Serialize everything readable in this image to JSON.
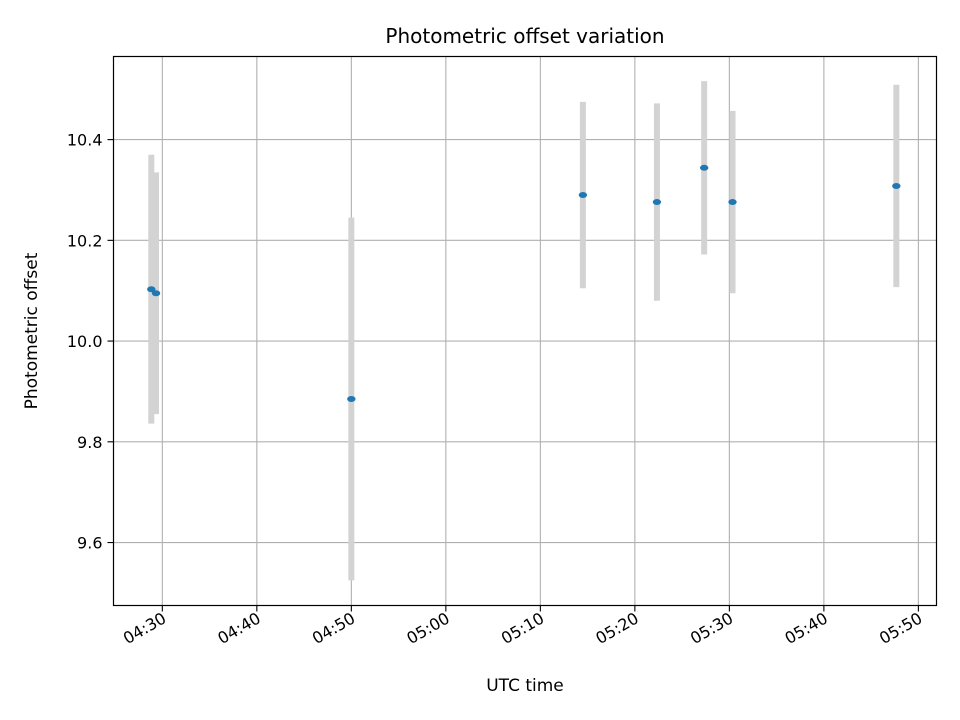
{
  "chart_data": {
    "type": "scatter",
    "title": "Photometric offset variation",
    "xlabel": "UTC time",
    "ylabel": "Photometric offset",
    "x_ticks": [
      "04:30",
      "04:40",
      "04:50",
      "05:00",
      "05:10",
      "05:20",
      "05:30",
      "05:40",
      "05:50"
    ],
    "y_ticks": [
      "9.6",
      "9.8",
      "10.0",
      "10.2",
      "10.4"
    ],
    "xlim": [
      "04:24:50",
      "05:51:55"
    ],
    "ylim": [
      9.475,
      10.565
    ],
    "grid": true,
    "colors": {
      "point": "#1f77b4",
      "errorbar": "#d3d3d3",
      "grid": "#b0b0b0"
    },
    "points": [
      {
        "x": "04:28:50",
        "y": 10.103,
        "yerr": 0.267
      },
      {
        "x": "04:29:20",
        "y": 10.095,
        "yerr": 0.24
      },
      {
        "x": "04:50:00",
        "y": 9.885,
        "yerr": 0.36
      },
      {
        "x": "05:14:30",
        "y": 10.29,
        "yerr": 0.185
      },
      {
        "x": "05:22:20",
        "y": 10.276,
        "yerr": 0.196
      },
      {
        "x": "05:27:20",
        "y": 10.344,
        "yerr": 0.172
      },
      {
        "x": "05:30:20",
        "y": 10.276,
        "yerr": 0.181
      },
      {
        "x": "05:47:40",
        "y": 10.308,
        "yerr": 0.201
      }
    ]
  }
}
